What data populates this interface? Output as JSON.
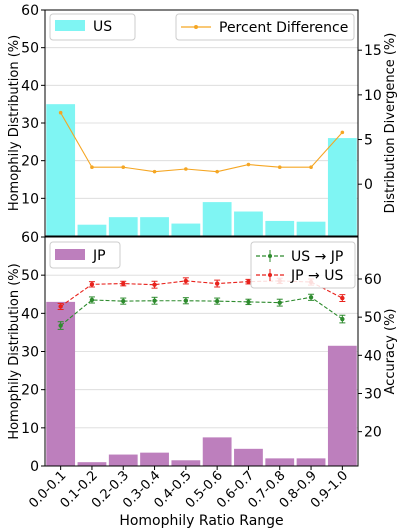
{
  "chart_data": [
    {
      "type": "bar",
      "panel": "top",
      "categories": [
        "0.0-0.1",
        "0.1-0.2",
        "0.2-0.3",
        "0.3-0.4",
        "0.4-0.5",
        "0.5-0.6",
        "0.6-0.7",
        "0.7-0.8",
        "0.8-0.9",
        "0.9-1.0"
      ],
      "ylabel_left": "Homophily Distribution (%)",
      "ylabel_right": "Distribution Divergence (%)",
      "ylim_left": [
        0,
        60
      ],
      "yticks_left": [
        "10",
        "20",
        "30",
        "40",
        "50",
        "60"
      ],
      "ylim_right": [
        -5.8,
        19.5
      ],
      "yticks_right": [
        "0",
        "5",
        "10",
        "15"
      ],
      "grid": true,
      "series": [
        {
          "name": "US",
          "kind": "bar",
          "axis": "left",
          "color": "#7ff5f3",
          "values": [
            35,
            3,
            5,
            5,
            3.3,
            9,
            6.5,
            4,
            3.8,
            26
          ]
        },
        {
          "name": "Percent Difference",
          "kind": "line",
          "axis": "right",
          "color": "#f5a623",
          "values": [
            8.0,
            1.9,
            1.9,
            1.4,
            1.7,
            1.4,
            2.2,
            1.9,
            1.9,
            5.8
          ]
        }
      ],
      "legend": {
        "left": "US",
        "right": "Percent Difference"
      }
    },
    {
      "type": "bar",
      "panel": "bottom",
      "categories": [
        "0.0-0.1",
        "0.1-0.2",
        "0.2-0.3",
        "0.3-0.4",
        "0.4-0.5",
        "0.5-0.6",
        "0.6-0.7",
        "0.7-0.8",
        "0.8-0.9",
        "0.9-1.0"
      ],
      "xlabel": "Homophily Ratio Range",
      "ylabel_left": "Homophily Distribution (%)",
      "ylabel_right": "Accuracy (%)",
      "ylim_left": [
        0,
        60
      ],
      "yticks_left": [
        "0",
        "10",
        "20",
        "30",
        "40",
        "50",
        "60"
      ],
      "ylim_right": [
        11,
        71
      ],
      "yticks_right": [
        "20",
        "30",
        "40",
        "50",
        "60"
      ],
      "grid": true,
      "series": [
        {
          "name": "JP",
          "kind": "bar",
          "axis": "left",
          "color": "#bd7fbd",
          "values": [
            43,
            1,
            3,
            3.5,
            1.5,
            7.5,
            4.5,
            2,
            2,
            31.5
          ]
        },
        {
          "name": "US → JP",
          "kind": "errorline",
          "axis": "right",
          "color": "#2e8b2e",
          "values": [
            47.8,
            54.5,
            54.2,
            54.3,
            54.3,
            54.2,
            54.0,
            53.8,
            55.2,
            49.5
          ],
          "errors": [
            1.0,
            0.8,
            0.8,
            0.9,
            0.8,
            0.8,
            0.7,
            0.9,
            0.8,
            1.0
          ]
        },
        {
          "name": "JP → US",
          "kind": "errorline",
          "axis": "right",
          "color": "#e8221c",
          "values": [
            52.8,
            58.6,
            58.8,
            58.5,
            59.5,
            58.8,
            59.3,
            59.5,
            59.2,
            55.0
          ],
          "errors": [
            0.8,
            0.7,
            0.6,
            0.9,
            0.8,
            0.9,
            0.6,
            0.7,
            0.8,
            0.9
          ]
        }
      ],
      "legend": {
        "left": "JP",
        "right": [
          "US → JP",
          "JP → US"
        ]
      }
    }
  ]
}
